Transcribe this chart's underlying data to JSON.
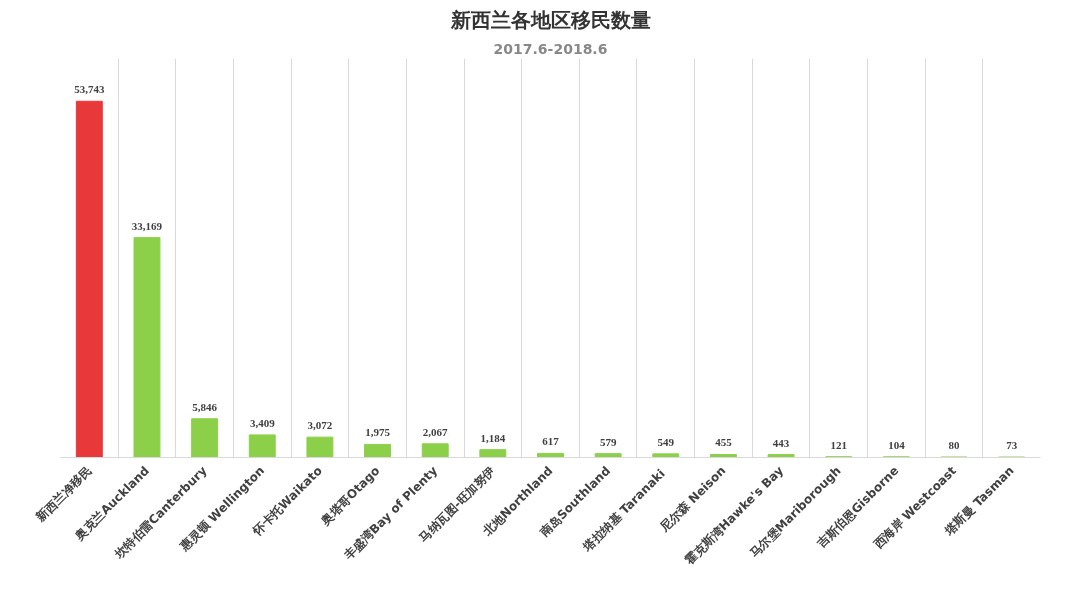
{
  "chart_data": {
    "type": "bar",
    "title": "新西兰各地区移民数量",
    "subtitle": "2017.6-2018.6",
    "categories": [
      "新西兰净移民",
      "奥克兰Auckland",
      "坎特伯雷Canterbury",
      "惠灵顿 Wellington",
      "怀卡托Waikato",
      "奥塔哥Otago",
      "丰盛湾Bay of Plenty",
      "马纳瓦图-旺加努伊",
      "北地Northland",
      "南岛Southland",
      "塔拉纳基  Taranaki",
      "尼尔森 Neison",
      "霍克斯湾Hawke's Bay",
      "马尔堡Mariborough",
      "吉斯伯恩Gisborne",
      "西海岸 Westcoast",
      "塔斯曼 Tasman"
    ],
    "values": [
      53743,
      33169,
      5846,
      3409,
      3072,
      1975,
      2067,
      1184,
      617,
      579,
      549,
      455,
      443,
      121,
      104,
      80,
      73
    ],
    "colors": [
      "#e8383a",
      "#8cd04a",
      "#8cd04a",
      "#8cd04a",
      "#8cd04a",
      "#8cd04a",
      "#8cd04a",
      "#8cd04a",
      "#8cd04a",
      "#8cd04a",
      "#8cd04a",
      "#8cd04a",
      "#8cd04a",
      "#8cd04a",
      "#8cd04a",
      "#8cd04a",
      "#8cd04a"
    ],
    "value_labels": [
      "53,743",
      "33,169",
      "5,846",
      "3,409",
      "3,072",
      "1,975",
      "2,067",
      "1,184",
      "617",
      "579",
      "549",
      "455",
      "443",
      "121",
      "104",
      "80",
      "73"
    ],
    "grid": "x"
  }
}
